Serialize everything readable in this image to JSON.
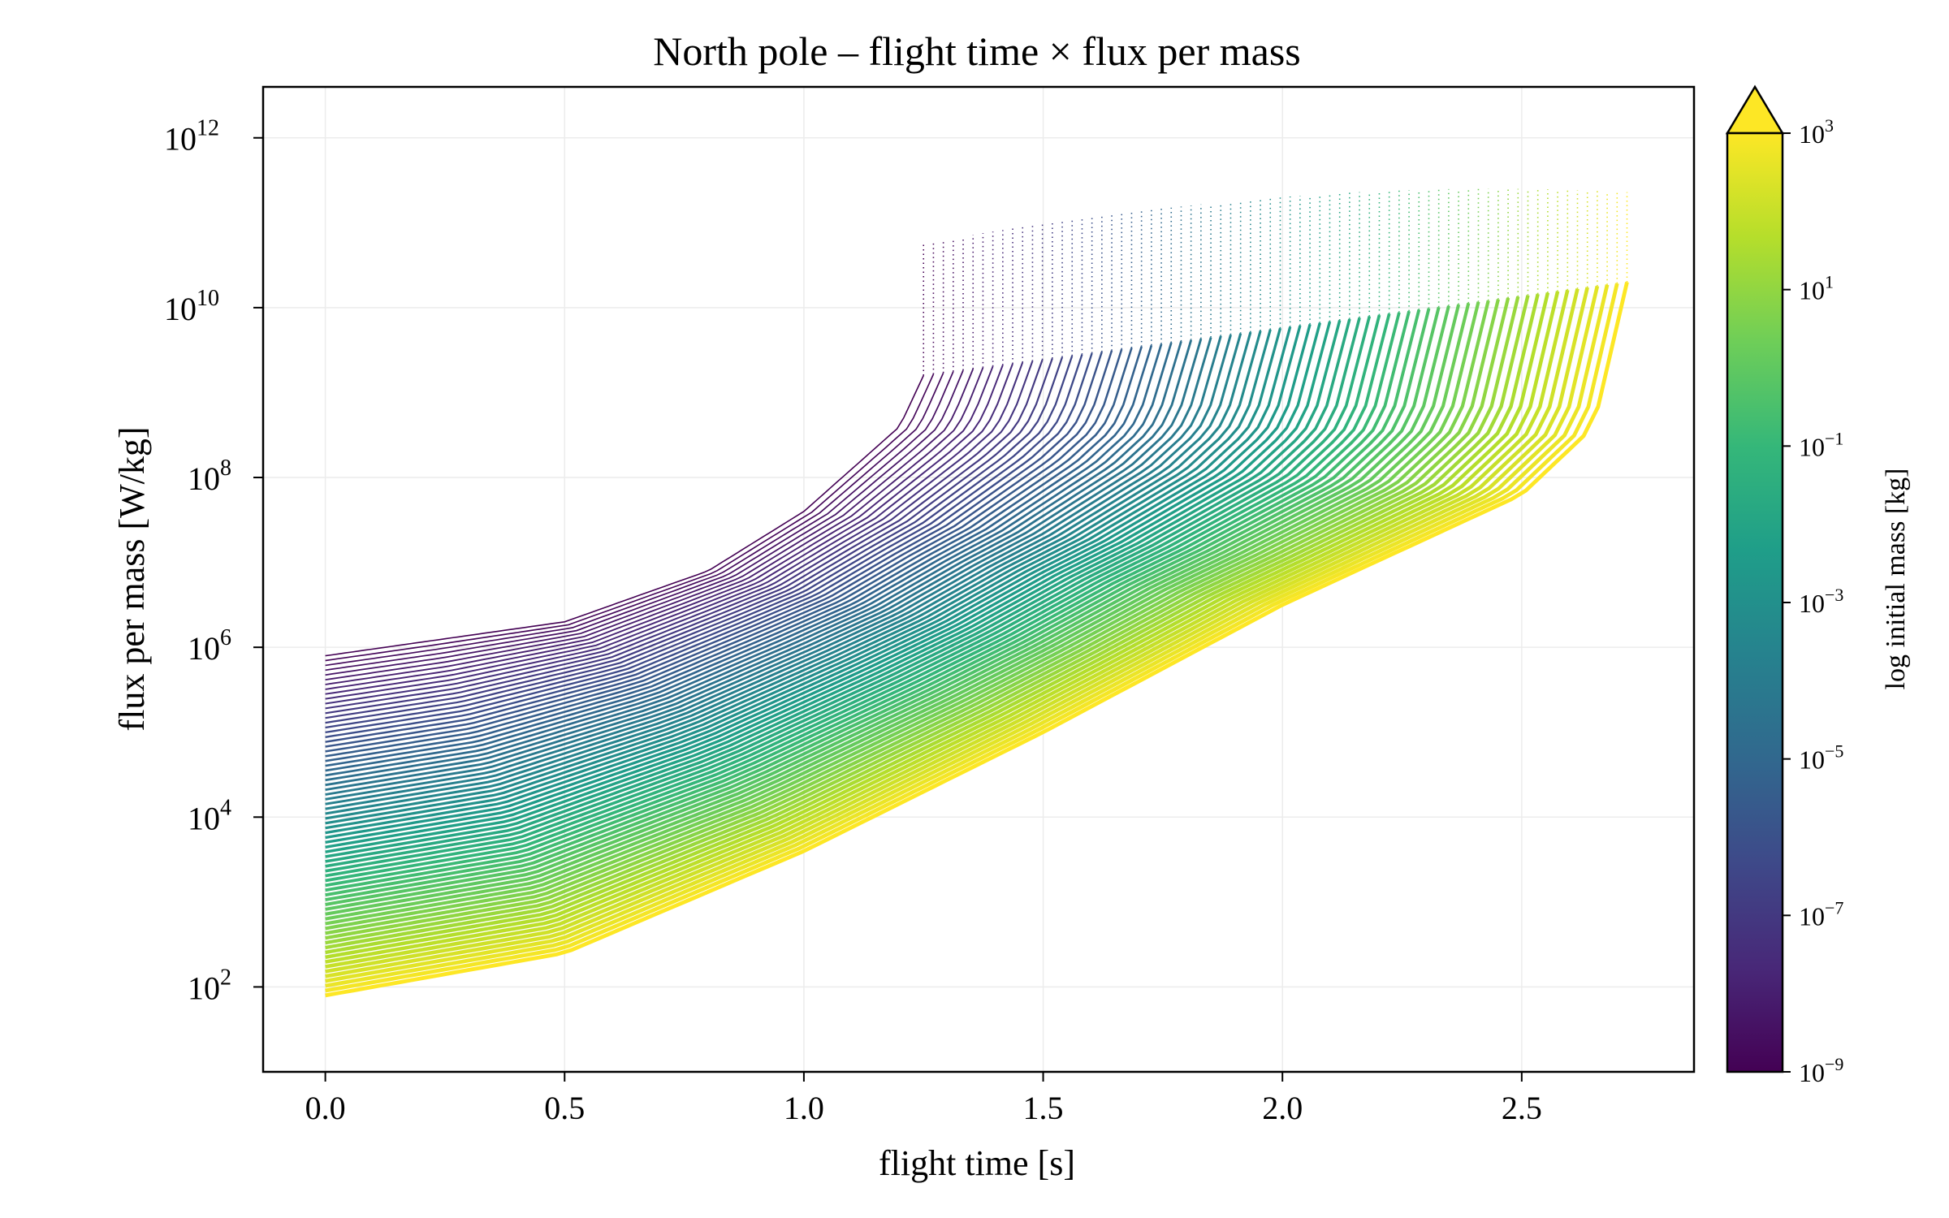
{
  "chart_data": {
    "type": "line",
    "title": "North pole – flight time × flux per mass",
    "xlabel": "flight time [s]",
    "ylabel": "flux per mass [W/kg]",
    "xlim": [
      -0.13,
      2.86
    ],
    "ylim_log10": [
      1.0,
      12.6
    ],
    "y_scale": "log",
    "grid": true,
    "x_ticks": [
      0.0,
      0.5,
      1.0,
      1.5,
      2.0,
      2.5
    ],
    "x_tick_labels": [
      "0.0",
      "0.5",
      "1.0",
      "1.5",
      "2.0",
      "2.5"
    ],
    "y_ticks_log10": [
      2,
      4,
      6,
      8,
      10,
      12
    ],
    "y_tick_labels": [
      {
        "base": "10",
        "exp": "2"
      },
      {
        "base": "10",
        "exp": "4"
      },
      {
        "base": "10",
        "exp": "6"
      },
      {
        "base": "10",
        "exp": "8"
      },
      {
        "base": "10",
        "exp": "10"
      },
      {
        "base": "10",
        "exp": "12"
      }
    ],
    "series_encoding": "one curve per initial mass, log10 mass from -9 to 3, colored by viridis colormap",
    "series_count": 72,
    "mass_log10_range": [
      -9,
      3
    ],
    "curve_family": {
      "lightest": {
        "mass_log10": -9,
        "end_time": 1.25,
        "points": [
          [
            0.0,
            5.9
          ],
          [
            0.5,
            6.3
          ],
          [
            0.8,
            6.9
          ],
          [
            1.0,
            7.6
          ],
          [
            1.2,
            8.6
          ],
          [
            1.25,
            9.2
          ]
        ]
      },
      "heaviest": {
        "mass_log10": 3,
        "end_time": 2.72,
        "points": [
          [
            0.0,
            1.9
          ],
          [
            0.5,
            2.4
          ],
          [
            1.0,
            3.6
          ],
          [
            1.5,
            5.0
          ],
          [
            2.0,
            6.5
          ],
          [
            2.5,
            7.8
          ],
          [
            2.65,
            8.6
          ],
          [
            2.72,
            10.3
          ]
        ]
      }
    },
    "peak_flux_log10_range": [
      10.5,
      11.4
    ],
    "colorbar": {
      "label": "log initial mass [kg]",
      "ticks_log10": [
        -9,
        -7,
        -5,
        -3,
        -1,
        1,
        3
      ],
      "tick_labels": [
        {
          "base": "10",
          "exp": "−9"
        },
        {
          "base": "10",
          "exp": "−7"
        },
        {
          "base": "10",
          "exp": "−5"
        },
        {
          "base": "10",
          "exp": "−3"
        },
        {
          "base": "10",
          "exp": "−1"
        },
        {
          "base": "10",
          "exp": "1"
        },
        {
          "base": "10",
          "exp": "3"
        }
      ],
      "extend": "max",
      "colormap": "viridis"
    }
  },
  "colors": {
    "viridis": [
      "#440154",
      "#482878",
      "#3e4989",
      "#31688e",
      "#26828e",
      "#1f9e89",
      "#35b779",
      "#6ece58",
      "#b5de2b",
      "#fde725"
    ],
    "grid": "#ececec",
    "axes": "#000000"
  }
}
